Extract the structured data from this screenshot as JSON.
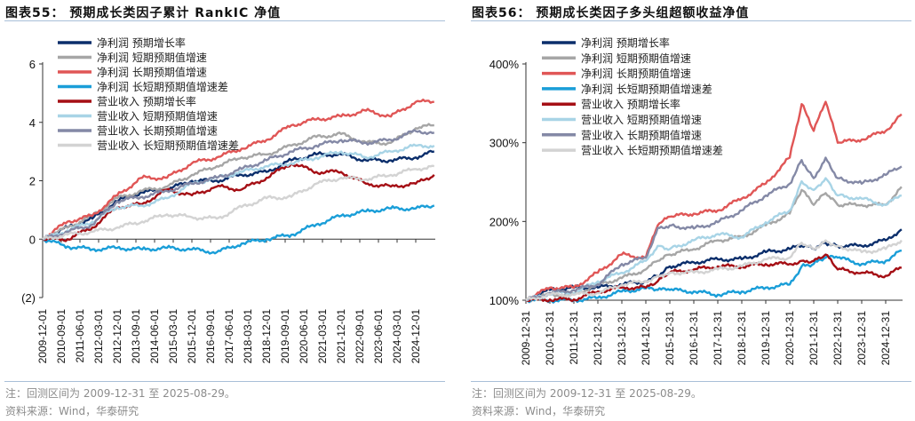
{
  "panels": [
    {
      "title": "图表55：  预期成长类因子累计 RankIC 净值",
      "note": "注：回测区间为 2009-12-31 至 2025-08-29。",
      "source": "资料来源：Wind，华泰研究"
    },
    {
      "title": "图表56：  预期成长类因子多头组超额收益净值",
      "note": "注：回测区间为 2009-12-31 至 2025-08-29。",
      "source": "资料来源：Wind，华泰研究"
    }
  ],
  "chart_data": [
    {
      "type": "line",
      "title": "预期成长类因子累计 RankIC 净值",
      "ylim": [
        -2,
        6
      ],
      "yticks": [
        6,
        4,
        2,
        0,
        -2
      ],
      "ytick_labels": [
        "6",
        "4",
        "2",
        "0",
        "(2)"
      ],
      "xtick_labels": [
        "2009-12-01",
        "2010-09-01",
        "2011-06-01",
        "2012-03-01",
        "2012-12-01",
        "2013-09-01",
        "2014-06-01",
        "2015-03-01",
        "2015-12-01",
        "2016-09-01",
        "2017-06-01",
        "2018-03-01",
        "2018-12-01",
        "2019-09-01",
        "2020-06-01",
        "2021-03-01",
        "2021-12-01",
        "2022-09-01",
        "2023-06-01",
        "2024-03-01",
        "2024-12-01"
      ],
      "grid": false,
      "legend": "top-left",
      "x": [
        "2009-12-01",
        "2010-12-01",
        "2011-12-01",
        "2012-12-01",
        "2013-12-01",
        "2014-12-01",
        "2015-12-01",
        "2016-12-01",
        "2017-12-01",
        "2018-12-01",
        "2019-12-01",
        "2020-12-01",
        "2021-12-01",
        "2022-12-01",
        "2023-12-01",
        "2024-12-01",
        "2025-08-29"
      ],
      "series": [
        {
          "name": "净利润 预期增长率",
          "color": "#0b2e6b",
          "values": [
            0,
            0.4,
            0.7,
            1.3,
            1.6,
            1.7,
            2.0,
            2.0,
            2.2,
            2.3,
            2.7,
            2.9,
            2.9,
            2.7,
            2.7,
            2.8,
            3.0
          ]
        },
        {
          "name": "净利润 短期预期值增速",
          "color": "#a6a6a6",
          "values": [
            0,
            0.4,
            0.8,
            1.4,
            1.65,
            1.8,
            2.2,
            2.5,
            2.8,
            2.9,
            3.2,
            3.5,
            3.6,
            3.3,
            3.3,
            3.8,
            3.9
          ]
        },
        {
          "name": "净利润 长期预期值增速",
          "color": "#e05656",
          "values": [
            0,
            0.6,
            0.8,
            1.5,
            2.1,
            2.1,
            2.6,
            2.8,
            3.1,
            3.4,
            3.9,
            4.1,
            4.2,
            4.4,
            4.2,
            4.7,
            4.7
          ]
        },
        {
          "name": "净利润 长短期预期值增速差",
          "color": "#1a9ed8",
          "values": [
            0,
            -0.25,
            -0.35,
            -0.3,
            -0.35,
            -0.3,
            -0.35,
            -0.45,
            -0.15,
            0,
            0.15,
            0.5,
            0.8,
            0.95,
            1.05,
            1.05,
            1.15
          ]
        },
        {
          "name": "营业收入 预期增长率",
          "color": "#a50f15",
          "values": [
            0,
            0,
            0.4,
            1.1,
            1.2,
            1.7,
            1.5,
            1.8,
            1.7,
            2.1,
            2.6,
            2.3,
            2.3,
            1.9,
            1.8,
            1.9,
            2.2
          ]
        },
        {
          "name": "营业收入 短期预期值增速",
          "color": "#a8d4e6",
          "values": [
            0,
            0.3,
            0.6,
            1.1,
            1.15,
            1.4,
            1.9,
            2.1,
            2.3,
            2.5,
            2.6,
            2.8,
            3.0,
            2.8,
            3.0,
            3.2,
            3.2
          ]
        },
        {
          "name": "营业收入 长期预期值增速",
          "color": "#8489a6",
          "values": [
            0,
            0.25,
            0.5,
            1.3,
            1.45,
            1.65,
            1.9,
            2.1,
            2.4,
            2.7,
            3.0,
            3.2,
            3.4,
            3.3,
            3.4,
            3.7,
            3.65
          ]
        },
        {
          "name": "营业收入 长短期预期值增速差",
          "color": "#d3d3d3",
          "values": [
            0,
            0.15,
            0.25,
            0.4,
            0.6,
            0.85,
            0.75,
            0.7,
            1.1,
            1.4,
            1.45,
            1.9,
            2.1,
            2.05,
            2.2,
            2.4,
            2.5
          ]
        }
      ]
    },
    {
      "type": "line",
      "title": "预期成长类因子多头组超额收益净值",
      "ylim": [
        100,
        400
      ],
      "yticks": [
        400,
        300,
        200,
        100
      ],
      "ytick_labels": [
        "400%",
        "300%",
        "200%",
        "100%"
      ],
      "xtick_labels": [
        "2009-12-31",
        "2010-12-31",
        "2011-12-31",
        "2012-12-31",
        "2013-12-31",
        "2014-12-31",
        "2015-12-31",
        "2016-12-31",
        "2017-12-31",
        "2018-12-31",
        "2019-12-31",
        "2020-12-31",
        "2021-12-31",
        "2022-12-31",
        "2023-12-31",
        "2024-12-31"
      ],
      "grid": false,
      "legend": "top-left",
      "x": [
        "2009-12-31",
        "2010-12-31",
        "2011-12-31",
        "2012-12-31",
        "2013-12-31",
        "2014-12-31",
        "2015-06-30",
        "2015-12-31",
        "2016-12-31",
        "2017-12-31",
        "2018-12-31",
        "2019-12-31",
        "2020-12-31",
        "2021-06-30",
        "2021-12-31",
        "2022-06-30",
        "2022-12-31",
        "2023-12-31",
        "2024-12-31",
        "2025-08-29"
      ],
      "series": [
        {
          "name": "净利润 预期增长率",
          "color": "#0b2e6b",
          "values": [
            100,
            113,
            116,
            116,
            120,
            124,
            131,
            143,
            148,
            152,
            152,
            161,
            165,
            169,
            165,
            173,
            169,
            169,
            176,
            190
          ]
        },
        {
          "name": "净利润 短期预期值增速",
          "color": "#a6a6a6",
          "values": [
            100,
            107,
            107,
            120,
            128,
            139,
            150,
            158,
            165,
            176,
            180,
            195,
            210,
            240,
            221,
            236,
            221,
            221,
            221,
            244
          ]
        },
        {
          "name": "净利润 长期预期值增速",
          "color": "#e05656",
          "values": [
            100,
            116,
            116,
            135,
            158,
            154,
            195,
            206,
            210,
            214,
            229,
            248,
            281,
            349,
            315,
            352,
            300,
            304,
            315,
            336
          ]
        },
        {
          "name": "净利润 长短期预期值增速差",
          "color": "#1a9ed8",
          "values": [
            100,
            100,
            100,
            103,
            111,
            115,
            113,
            113,
            111,
            107,
            111,
            116,
            120,
            143,
            146,
            154,
            154,
            146,
            150,
            163
          ]
        },
        {
          "name": "营业收入 预期增长率",
          "color": "#a50f15",
          "values": [
            100,
            101,
            101,
            111,
            116,
            116,
            124,
            135,
            139,
            143,
            143,
            146,
            146,
            150,
            150,
            158,
            139,
            135,
            131,
            141
          ]
        },
        {
          "name": "营业收入 短期预期值增速",
          "color": "#a8d4e6",
          "values": [
            100,
            109,
            109,
            124,
            135,
            150,
            169,
            165,
            176,
            184,
            180,
            199,
            214,
            251,
            240,
            255,
            233,
            229,
            221,
            233
          ]
        },
        {
          "name": "营业收入 长期预期值增速",
          "color": "#8489a6",
          "values": [
            100,
            109,
            113,
            120,
            146,
            154,
            192,
            195,
            191,
            199,
            214,
            233,
            248,
            278,
            255,
            281,
            255,
            248,
            259,
            270
          ]
        },
        {
          "name": "营业收入 长短期预期值增速差",
          "color": "#d3d3d3",
          "values": [
            100,
            107,
            107,
            109,
            120,
            124,
            131,
            135,
            135,
            139,
            143,
            152,
            154,
            173,
            165,
            176,
            169,
            161,
            165,
            176
          ]
        }
      ]
    }
  ]
}
